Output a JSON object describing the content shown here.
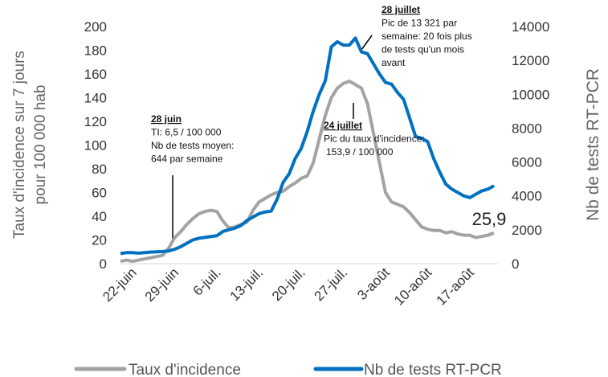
{
  "chart_data": {
    "type": "line",
    "ylabel": [
      "Taux d'incidence sur 7 jours",
      "pour 100 000 hab"
    ],
    "y2label": "Nb de tests RT-PCR",
    "categories": [
      null,
      null,
      "22-juin",
      null,
      null,
      null,
      null,
      null,
      null,
      "29-juin",
      null,
      null,
      null,
      null,
      null,
      null,
      "6-juil.",
      null,
      null,
      null,
      null,
      null,
      null,
      "13-juil.",
      null,
      null,
      null,
      null,
      null,
      null,
      "20-juil.",
      null,
      null,
      null,
      null,
      null,
      null,
      "27-juil.",
      null,
      null,
      null,
      null,
      null,
      null,
      "3-août",
      null,
      null,
      null,
      null,
      null,
      null,
      "10-août",
      null,
      null,
      null,
      null,
      null,
      null,
      "17-août",
      null,
      null,
      null,
      null
    ],
    "series": [
      {
        "name": "Taux d'incidence",
        "color": "#a3a3a3",
        "axis": "y",
        "values": [
          2,
          3,
          2,
          3,
          4,
          5,
          6,
          7,
          13,
          22,
          27,
          33,
          38,
          42,
          44,
          45,
          44,
          36,
          30,
          31,
          33,
          35,
          45,
          52,
          55,
          58,
          60,
          61,
          65,
          68,
          72,
          74,
          85,
          105,
          125,
          140,
          148,
          152,
          153.9,
          151,
          148,
          135,
          110,
          85,
          60,
          52,
          50,
          48,
          43,
          37,
          31,
          29,
          28,
          28,
          26,
          27,
          25,
          24,
          24,
          22,
          23,
          24,
          25.9
        ],
        "value_labels": [
          null,
          null,
          null,
          null,
          null,
          null,
          null,
          null,
          null,
          null,
          null,
          null,
          null,
          null,
          null,
          null,
          null,
          null,
          null,
          null,
          null,
          null,
          null,
          null,
          null,
          null,
          null,
          null,
          null,
          null,
          null,
          null,
          null,
          null,
          null,
          null,
          null,
          null,
          null,
          null,
          null,
          null,
          null,
          null,
          null,
          null,
          null,
          null,
          null,
          null,
          null,
          null,
          null,
          null,
          null,
          null,
          null,
          null,
          null,
          null,
          null,
          null,
          "25,9"
        ]
      },
      {
        "name": "Nb de tests RT-PCR",
        "color": "#0070c0",
        "axis": "y2",
        "values": [
          600,
          650,
          650,
          620,
          650,
          680,
          700,
          720,
          750,
          850,
          1000,
          1200,
          1400,
          1500,
          1550,
          1600,
          1650,
          1900,
          2000,
          2100,
          2250,
          2550,
          2750,
          2950,
          3050,
          3100,
          3800,
          4800,
          5300,
          6200,
          6800,
          7800,
          9000,
          10000,
          10800,
          12800,
          13100,
          12900,
          12900,
          13321,
          12500,
          12400,
          11800,
          11200,
          10700,
          10600,
          10100,
          9700,
          8600,
          7500,
          7400,
          7200,
          6200,
          5400,
          4700,
          4400,
          4200,
          4000,
          3900,
          4100,
          4300,
          4400,
          4600
        ]
      }
    ],
    "ylim": [
      0,
      200
    ],
    "yticks": [
      0,
      20,
      40,
      60,
      80,
      100,
      120,
      140,
      160,
      180,
      200
    ],
    "y2lim": [
      0,
      14000
    ],
    "y2ticks": [
      0,
      2000,
      4000,
      6000,
      8000,
      10000,
      12000,
      14000
    ],
    "grid": false,
    "legend": "bottom",
    "annotations": [
      {
        "lines": [
          "28 juin",
          "TI: 6,5 / 100 000",
          "Nb de tests moyen:",
          "644 par semaine"
        ]
      },
      {
        "lines": [
          "24 juillet",
          "Pic du taux d'incidence:",
          "153,9 / 100 000"
        ]
      },
      {
        "lines": [
          "28 juillet",
          "Pic de 13 321 par",
          "semaine: 20 fois plus",
          "de tests qu'un mois",
          "avant"
        ]
      }
    ]
  }
}
